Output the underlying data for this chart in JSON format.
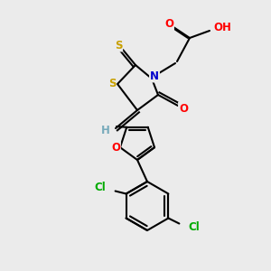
{
  "bg_color": "#ebebeb",
  "atom_colors": {
    "S": "#c8a000",
    "N": "#0000cc",
    "O": "#ff0000",
    "Cl": "#00aa00",
    "C": "#000000",
    "H": "#7ab"
  },
  "bond_color": "#000000",
  "lw": 1.5,
  "fs": 8.5
}
